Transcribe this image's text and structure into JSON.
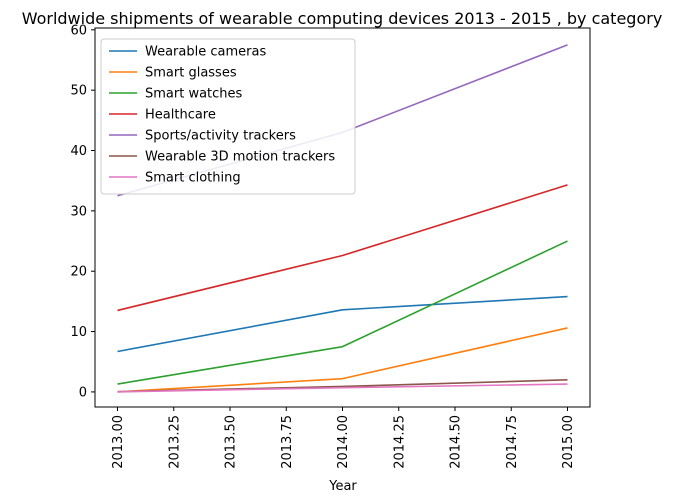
{
  "chart_data": {
    "type": "line",
    "title": "Worldwide shipments of wearable computing devices 2013 - 2015 , by category",
    "xlabel": "Year",
    "ylabel": "",
    "x": [
      2013,
      2014,
      2015
    ],
    "xlim": [
      2012.9,
      2015.1
    ],
    "ylim": [
      -2.5,
      60.3
    ],
    "x_ticks": [
      2013.0,
      2013.25,
      2013.5,
      2013.75,
      2014.0,
      2014.25,
      2014.5,
      2014.75,
      2015.0
    ],
    "x_tick_labels": [
      "2013.00",
      "2013.25",
      "2013.50",
      "2013.75",
      "2014.00",
      "2014.25",
      "2014.50",
      "2014.75",
      "2015.00"
    ],
    "y_ticks": [
      0,
      10,
      20,
      30,
      40,
      50,
      60
    ],
    "y_tick_labels": [
      "0",
      "10",
      "20",
      "30",
      "40",
      "50",
      "60"
    ],
    "grid": false,
    "legend_position": "top-left",
    "series": [
      {
        "name": "Wearable cameras",
        "color": "#1f77b4",
        "values": [
          6.7,
          13.6,
          15.8
        ]
      },
      {
        "name": "Smart glasses",
        "color": "#ff7f0e",
        "values": [
          0.0,
          2.2,
          10.6
        ]
      },
      {
        "name": "Smart watches",
        "color": "#2ca02c",
        "values": [
          1.3,
          7.5,
          25.0
        ]
      },
      {
        "name": "Healthcare",
        "color": "#d62728",
        "values": [
          13.5,
          22.6,
          34.3
        ]
      },
      {
        "name": "Sports/activity trackers",
        "color": "#9467bd",
        "values": [
          32.5,
          43.0,
          57.5
        ]
      },
      {
        "name": "Wearable 3D motion trackers",
        "color": "#8c564b",
        "values": [
          0.05,
          0.9,
          2.0
        ]
      },
      {
        "name": "Smart clothing",
        "color": "#e377c2",
        "values": [
          0.0,
          0.7,
          1.3
        ]
      }
    ]
  }
}
